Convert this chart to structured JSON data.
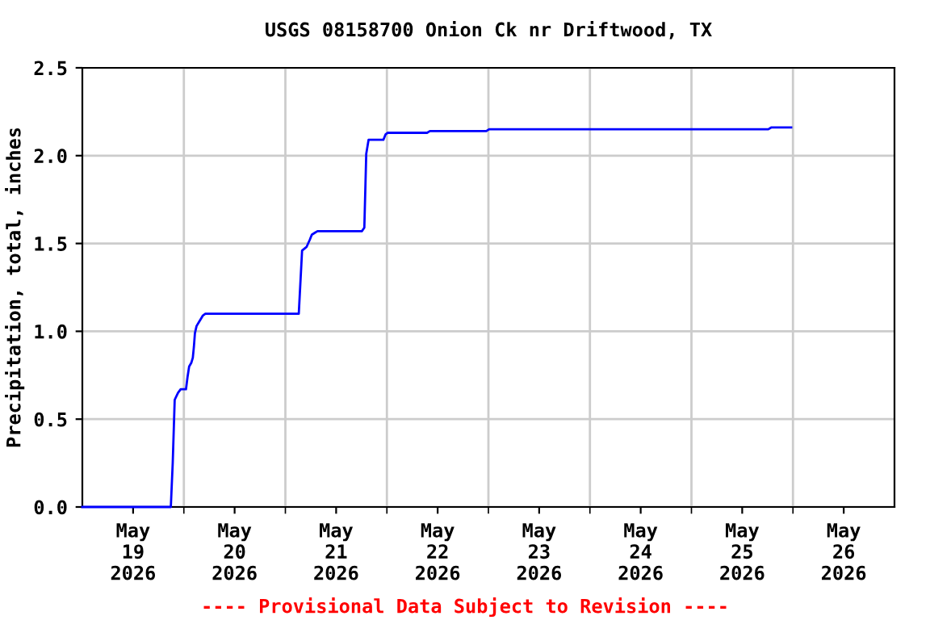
{
  "chart_data": {
    "type": "line",
    "title": "USGS 08158700 Onion Ck nr Driftwood, TX",
    "ylabel": "Precipitation, total, inches",
    "annotations": [
      "---- Provisional Data Subject to Revision ----"
    ],
    "x": [
      "2026-05-19T00:00",
      "2026-05-19T20:55",
      "2026-05-19T21:22",
      "2026-05-19T21:50",
      "2026-05-19T22:37",
      "2026-05-19T23:15",
      "2026-05-20T00:30",
      "2026-05-20T00:52",
      "2026-05-20T01:15",
      "2026-05-20T01:45",
      "2026-05-20T02:07",
      "2026-05-20T02:22",
      "2026-05-20T02:37",
      "2026-05-20T03:00",
      "2026-05-20T03:30",
      "2026-05-20T04:00",
      "2026-05-20T04:30",
      "2026-05-20T05:05",
      "2026-05-21T03:10",
      "2026-05-21T03:57",
      "2026-05-21T05:00",
      "2026-05-21T05:45",
      "2026-05-21T06:15",
      "2026-05-21T06:55",
      "2026-05-21T07:35",
      "2026-05-21T18:05",
      "2026-05-21T18:40",
      "2026-05-21T19:07",
      "2026-05-21T19:40",
      "2026-05-21T23:10",
      "2026-05-21T23:40",
      "2026-05-22T00:10",
      "2026-05-22T09:30",
      "2026-05-22T10:10",
      "2026-05-22T23:30",
      "2026-05-23T00:10",
      "2026-05-25T18:10",
      "2026-05-25T18:50",
      "2026-05-25T23:35"
    ],
    "series": [
      {
        "color": "#0000ff",
        "values": [
          0,
          0,
          0.25,
          0.61,
          0.65,
          0.67,
          0.67,
          0.74,
          0.8,
          0.82,
          0.85,
          0.91,
          0.99,
          1.03,
          1.05,
          1.07,
          1.09,
          1.1,
          1.1,
          1.46,
          1.48,
          1.52,
          1.55,
          1.56,
          1.57,
          1.57,
          1.59,
          2.01,
          2.09,
          2.09,
          2.12,
          2.13,
          2.13,
          2.14,
          2.14,
          2.15,
          2.15,
          2.16,
          2.16
        ]
      }
    ],
    "xlim": [
      "2026-05-19",
      "2026-05-27"
    ],
    "xticks": [
      {
        "value": "2026-05-19T12:00",
        "label": "May\n19\n2026"
      },
      {
        "value": "2026-05-20T12:00",
        "label": "May\n20\n2026"
      },
      {
        "value": "2026-05-21T12:00",
        "label": "May\n21\n2026"
      },
      {
        "value": "2026-05-22T12:00",
        "label": "May\n22\n2026"
      },
      {
        "value": "2026-05-23T12:00",
        "label": "May\n23\n2026"
      },
      {
        "value": "2026-05-24T12:00",
        "label": "May\n24\n2026"
      },
      {
        "value": "2026-05-25T12:00",
        "label": "May\n25\n2026"
      },
      {
        "value": "2026-05-26T12:00",
        "label": "May\n26\n2026"
      },
      {
        "value": "2026-05-20",
        "label": null
      },
      {
        "value": "2026-05-21",
        "label": null
      },
      {
        "value": "2026-05-22",
        "label": null
      },
      {
        "value": "2026-05-23",
        "label": null
      },
      {
        "value": "2026-05-24",
        "label": null
      },
      {
        "value": "2026-05-25",
        "label": null
      },
      {
        "value": "2026-05-26",
        "label": null
      }
    ],
    "ylim": [
      0,
      2.5
    ],
    "yticks": [
      {
        "value": 0,
        "label": "0.0"
      },
      0.5,
      {
        "value": 1,
        "label": "1.0"
      },
      1.5,
      {
        "value": 2,
        "label": "2.0"
      },
      2.5
    ],
    "grid": true
  }
}
